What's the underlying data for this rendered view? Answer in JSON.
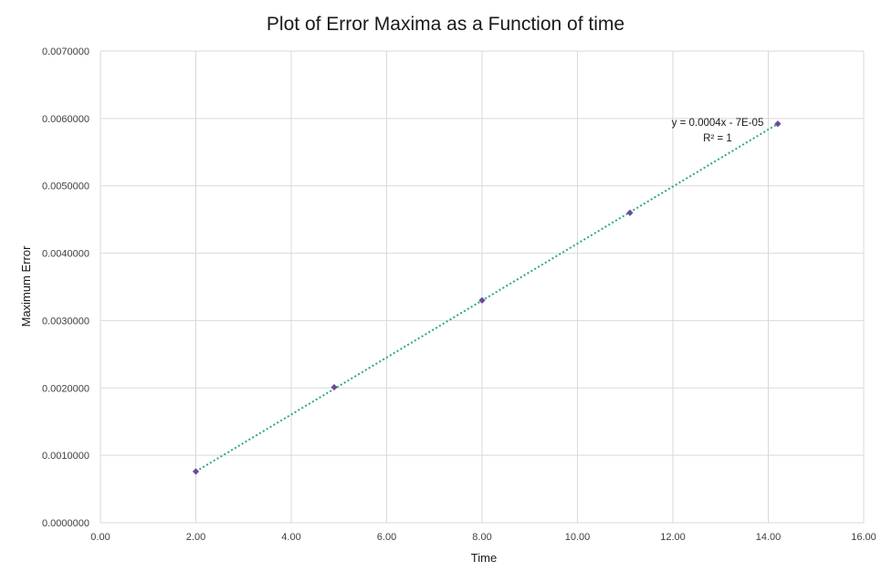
{
  "chart_data": {
    "type": "scatter",
    "title": "Plot of Error Maxima as a Function of time",
    "xlabel": "Time",
    "ylabel": "Maximum Error",
    "xlim": [
      0,
      16
    ],
    "ylim": [
      0,
      0.007
    ],
    "x_ticks": [
      "0.00",
      "2.00",
      "4.00",
      "6.00",
      "8.00",
      "10.00",
      "12.00",
      "14.00",
      "16.00"
    ],
    "y_ticks": [
      "0.0000000",
      "0.0010000",
      "0.0020000",
      "0.0030000",
      "0.0040000",
      "0.0050000",
      "0.0060000",
      "0.0070000"
    ],
    "grid": true,
    "legend": "none",
    "series": [
      {
        "points": [
          {
            "x": 2.0,
            "y": 0.00076
          },
          {
            "x": 4.9,
            "y": 0.00201
          },
          {
            "x": 8.0,
            "y": 0.0033
          },
          {
            "x": 11.1,
            "y": 0.0046
          },
          {
            "x": 14.2,
            "y": 0.00592
          }
        ],
        "marker_color": "#6a4a9c"
      }
    ],
    "trendline": {
      "type": "linear",
      "x_start": 2.0,
      "x_end": 14.2,
      "y_start": 0.00076,
      "y_end": 0.00592,
      "color": "#2aa88a",
      "style": "dotted",
      "equation": "y = 0.0004x - 7E-05",
      "r_squared": "R² = 1"
    },
    "colors": {
      "grid": "#d9d9d9",
      "marker": "#6a4a9c",
      "trendline": "#2aa88a"
    }
  }
}
